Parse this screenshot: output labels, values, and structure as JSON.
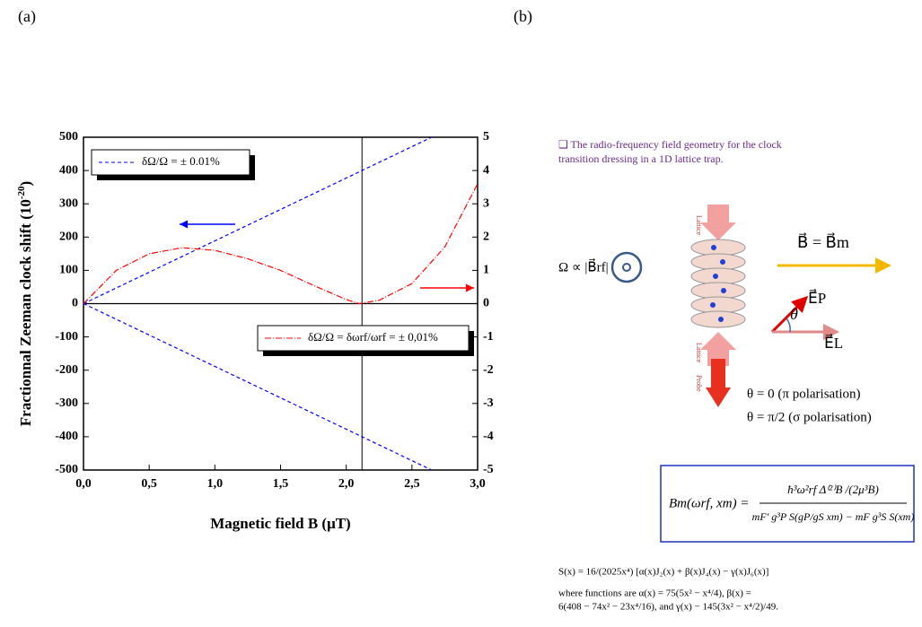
{
  "panel_labels": [
    "(a)",
    "(b)"
  ],
  "chart_data": {
    "type": "line",
    "xlabel": "Magnetic field B (μT)",
    "ylabel": "Fractionnal Zeeman clock shift  (10",
    "ylabel_sup": "-20",
    "ylabel_end": ")",
    "xlim": [
      0,
      3
    ],
    "xticks": [
      {
        "value": 0,
        "label": "0,0"
      },
      {
        "value": 0.5,
        "label": "0,5"
      },
      {
        "value": 1,
        "label": "1,0"
      },
      {
        "value": 1.5,
        "label": "1,5"
      },
      {
        "value": 2,
        "label": "2,0"
      },
      {
        "value": 2.5,
        "label": "2,5"
      },
      {
        "value": 3,
        "label": "3,0"
      }
    ],
    "ylim": [
      -500,
      500
    ],
    "yticks": [
      -500,
      -400,
      -300,
      -200,
      -100,
      0,
      100,
      200,
      300,
      400,
      500
    ],
    "y2lim": [
      -5,
      5
    ],
    "y2ticks": [
      -5,
      -4,
      -3,
      -2,
      -1,
      0,
      1,
      2,
      3,
      4,
      5
    ],
    "vline_x": 2.12,
    "series": [
      {
        "name": "δΩ/Ω = ± 0.01%",
        "color": "#0000ff",
        "x": [
          0,
          2.65
        ],
        "values": [
          0,
          500
        ]
      },
      {
        "color": "#0000ff",
        "x": [
          0,
          2.65
        ],
        "values": [
          0,
          -500
        ]
      },
      {
        "name": "δΩ/Ω = δωrf/ωrf = ± 0,01%",
        "color": "#ff0000",
        "axis": "y2",
        "x": [
          0,
          0.25,
          0.5,
          0.75,
          1,
          1.25,
          1.5,
          1.75,
          2,
          2.1,
          2.25,
          2.5,
          2.75,
          3
        ],
        "values": [
          0,
          1.0,
          1.5,
          1.68,
          1.6,
          1.35,
          1.0,
          0.55,
          0.12,
          0,
          0.1,
          0.6,
          1.7,
          3.6
        ]
      }
    ]
  },
  "diagram": {
    "caption": "❑ The radio-frequency field geometry for the clock",
    "caption2": "transition dressing in a 1D lattice trap.",
    "omega_label": "Ω ∝ |B⃗rf|",
    "lattice_top": "Lattice",
    "lattice_bottom": "Lattice",
    "probe": "Probe",
    "b_label": "B⃗ = B⃗m",
    "ep_label": "E⃗P",
    "theta": "θ",
    "el_label": "E⃗L",
    "pi_pol": "θ = 0  (π polarisation)",
    "sigma_pol": "θ = π/2 (σ polarisation)",
    "formula_lhs": "Bm(ωrf, xm) =",
    "formula_num": "ħ³ω²rf Δ⁽²⁾B /(2μ³B)",
    "formula_den": "mF′ g³P S(gP/gS xm) − mF g³S S(xm)",
    "s_def": "S(x) = 16/(2025x⁴) [α(x)J₂(x) + β(x)J₄(x) − γ(x)J₆(x)]",
    "where1": "where  functions  are  α(x) = 75(5x² − x⁴/4),  β(x) =",
    "where2": "6(408 − 74x² − 23x⁴/16), and γ(x) − 145(3x² − x⁴/2)/49."
  }
}
